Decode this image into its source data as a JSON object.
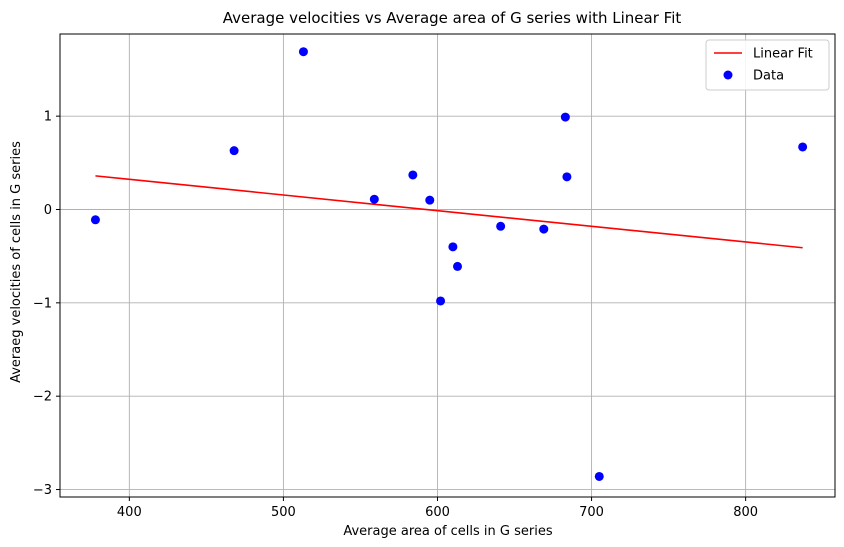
{
  "chart_data": {
    "type": "scatter",
    "title": "Average velocities vs Average area  of G series with Linear Fit",
    "xlabel": "Average area of cells in G series",
    "ylabel": "Averaeg velocities of cells in G series",
    "xlim": [
      355,
      858
    ],
    "ylim": [
      -3.08,
      1.88
    ],
    "xticks": [
      400,
      500,
      600,
      700,
      800
    ],
    "xtick_labels": [
      "400",
      "500",
      "600",
      "700",
      "800"
    ],
    "yticks": [
      1,
      0,
      -1,
      -2,
      -3
    ],
    "ytick_labels": [
      "1",
      "0",
      "−1",
      "−2",
      "−3"
    ],
    "grid": true,
    "legend_position": "top-right",
    "series": [
      {
        "name": "Data",
        "type": "scatter",
        "color": "#0000ff",
        "x": [
          378,
          468,
          513,
          559,
          584,
          595,
          602,
          610,
          613,
          641,
          669,
          683,
          684,
          705,
          837
        ],
        "y": [
          -0.11,
          0.63,
          1.69,
          0.11,
          0.37,
          0.1,
          -0.98,
          -0.4,
          -0.61,
          -0.18,
          -0.21,
          0.99,
          0.35,
          -2.86,
          0.67
        ]
      },
      {
        "name": "Linear Fit",
        "type": "line",
        "color": "#ff0000",
        "x": [
          378,
          837
        ],
        "y": [
          0.36,
          -0.41
        ]
      }
    ]
  }
}
